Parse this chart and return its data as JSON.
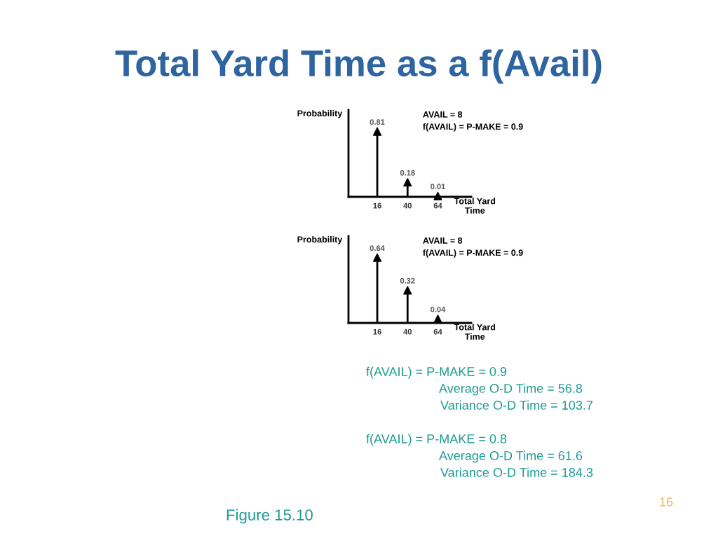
{
  "chart_data": [
    {
      "type": "lollipop",
      "title": "Total Yard Time as a f(Avail)",
      "xlabel": "Total Yard\nTime",
      "ylabel": "Probability",
      "categories": [
        "16",
        "40",
        "64"
      ],
      "values": [
        0.81,
        0.18,
        0.01
      ],
      "color": "#000000",
      "marker": "triangle",
      "data_labels": true,
      "annotations": [
        "AVAIL = 8",
        "f(AVAIL) = P-MAKE = 0.9"
      ]
    },
    {
      "type": "lollipop",
      "xlabel": "Total Yard\nTime",
      "ylabel": "Probability",
      "categories": [
        "16",
        "40",
        "64"
      ],
      "values": [
        0.64,
        0.32,
        0.04
      ],
      "color": "#000000",
      "marker": "triangle",
      "data_labels": true,
      "annotations": [
        "AVAIL = 8",
        "f(AVAIL) = P-MAKE = 0.9",
        "f(AVAIL) = P-MAKE = 0.9",
        "Average O-D Time = 56.8",
        "Variance O-D Time = 103.7",
        "f(AVAIL) = P-MAKE = 0.8",
        "Average O-D Time = 61.6",
        "Variance O-D Time = 184.3",
        "Figure 15.10",
        "16"
      ]
    }
  ]
}
